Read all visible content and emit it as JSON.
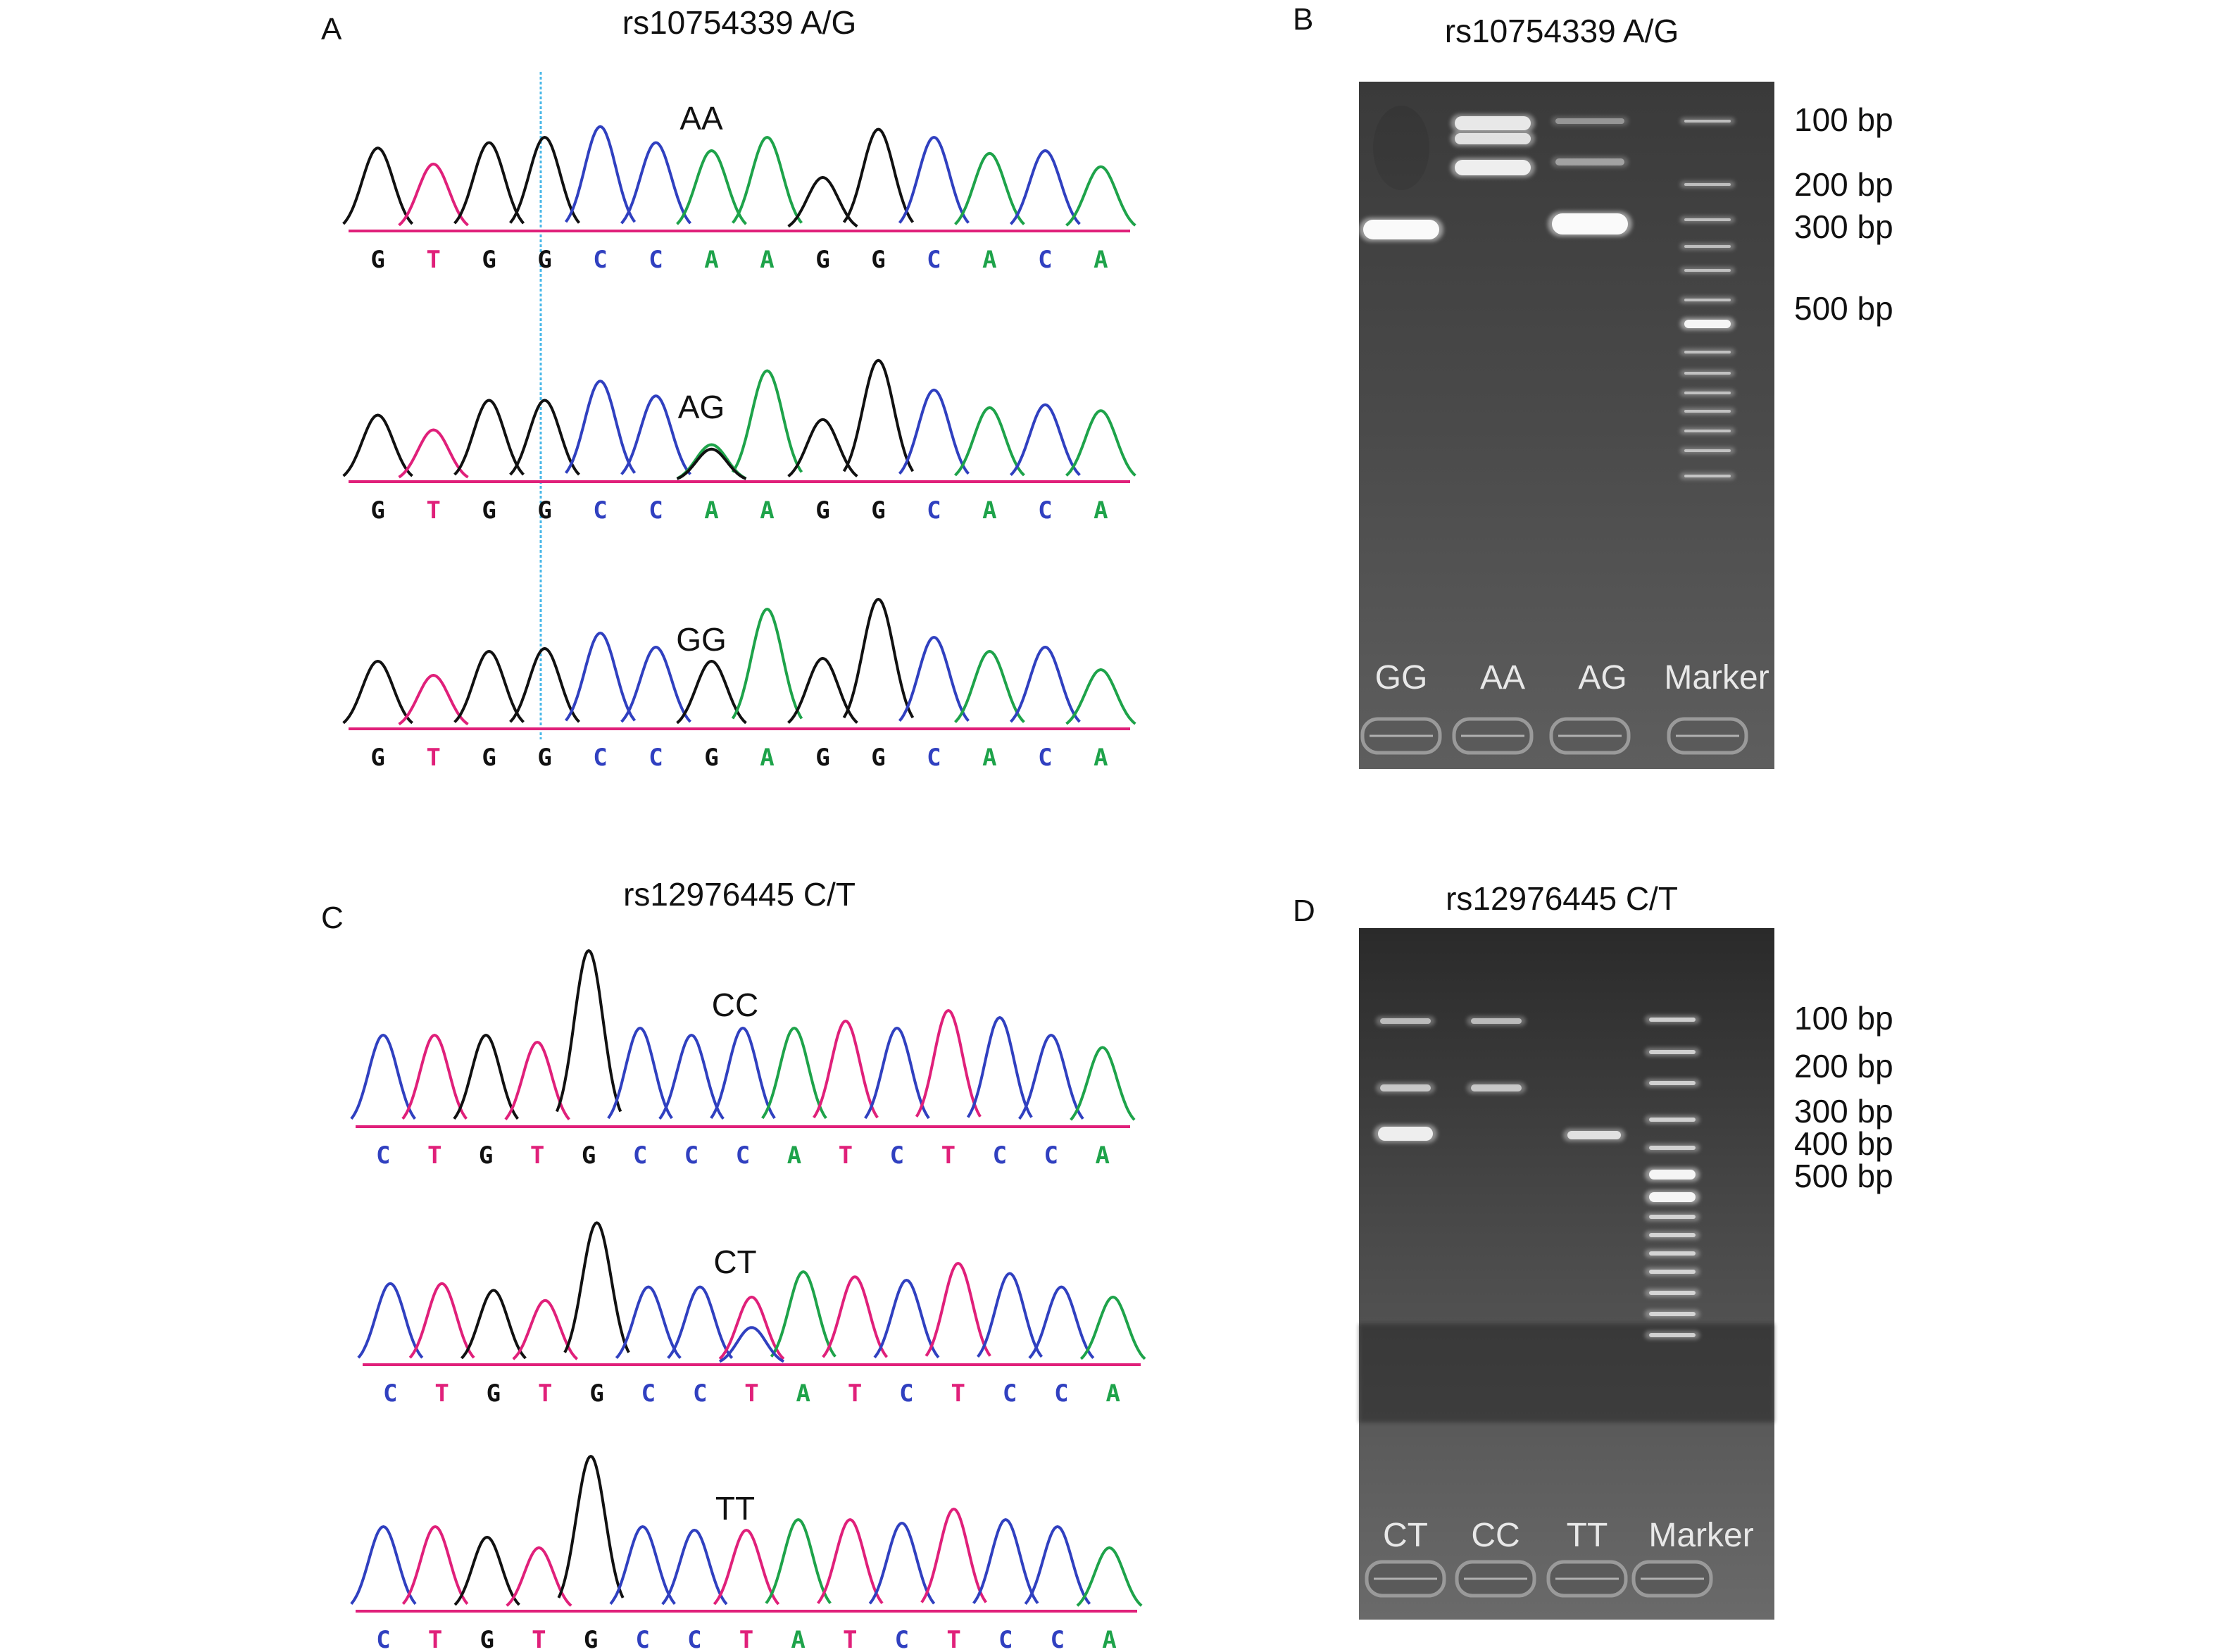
{
  "figure": {
    "panels": [
      {
        "id": "A",
        "label": "A",
        "title": "rs10754339 A/G",
        "traces": [
          {
            "genotype": "AA",
            "bases": [
              "G",
              "T",
              "G",
              "G",
              "C",
              "C",
              "A",
              "A",
              "G",
              "G",
              "C",
              "A",
              "C",
              "A"
            ],
            "peaks": [
              0.62,
              0.5,
              0.66,
              0.7,
              0.78,
              0.66,
              0.6,
              0.7,
              0.4,
              0.76,
              0.7,
              0.58,
              0.6,
              0.48
            ]
          },
          {
            "genotype": "AG",
            "bases": [
              "G",
              "T",
              "G",
              "G",
              "C",
              "C",
              "A",
              "A",
              "G",
              "G",
              "C",
              "A",
              "C",
              "A"
            ],
            "peaks": [
              0.45,
              0.35,
              0.55,
              0.55,
              0.68,
              0.58,
              0.25,
              0.75,
              0.42,
              0.82,
              0.62,
              0.5,
              0.52,
              0.48
            ]
          },
          {
            "genotype": "GG",
            "bases": [
              "G",
              "T",
              "G",
              "G",
              "C",
              "C",
              "G",
              "A",
              "G",
              "G",
              "C",
              "A",
              "C",
              "A"
            ],
            "peaks": [
              0.48,
              0.38,
              0.55,
              0.57,
              0.68,
              0.58,
              0.48,
              0.85,
              0.5,
              0.92,
              0.65,
              0.55,
              0.58,
              0.42
            ]
          }
        ]
      },
      {
        "id": "B",
        "label": "B",
        "title": "rs10754339 A/G",
        "markers": [
          "100 bp",
          "200 bp",
          "300 bp",
          "500 bp"
        ],
        "lanes": [
          "GG",
          "AA",
          "AG",
          "Marker"
        ]
      },
      {
        "id": "C",
        "label": "C",
        "title": "rs12976445 C/T",
        "traces": [
          {
            "genotype": "CC",
            "bases": [
              "C",
              "T",
              "G",
              "T",
              "G",
              "C",
              "C",
              "C",
              "A",
              "T",
              "C",
              "T",
              "C",
              "C",
              "A"
            ],
            "peaks": [
              0.52,
              0.52,
              0.52,
              0.48,
              1.0,
              0.56,
              0.52,
              0.56,
              0.56,
              0.6,
              0.56,
              0.66,
              0.62,
              0.52,
              0.45
            ]
          },
          {
            "genotype": "CT",
            "bases": [
              "C",
              "T",
              "G",
              "T",
              "G",
              "C",
              "C",
              "T",
              "A",
              "T",
              "C",
              "T",
              "C",
              "C",
              "A"
            ],
            "peaks": [
              0.48,
              0.48,
              0.44,
              0.38,
              0.84,
              0.46,
              0.46,
              0.4,
              0.55,
              0.52,
              0.5,
              0.6,
              0.54,
              0.46,
              0.4
            ]
          },
          {
            "genotype": "TT",
            "bases": [
              "C",
              "T",
              "G",
              "T",
              "G",
              "C",
              "C",
              "T",
              "A",
              "T",
              "C",
              "T",
              "C",
              "C",
              "A"
            ],
            "peaks": [
              0.48,
              0.48,
              0.42,
              0.36,
              0.88,
              0.48,
              0.46,
              0.46,
              0.52,
              0.52,
              0.5,
              0.58,
              0.52,
              0.48,
              0.36
            ]
          }
        ]
      },
      {
        "id": "D",
        "label": "D",
        "title": "rs12976445 C/T",
        "markers": [
          "100 bp",
          "200 bp",
          "300 bp",
          "400 bp",
          "500 bp"
        ],
        "lanes": [
          "CT",
          "CC",
          "TT",
          "Marker"
        ]
      }
    ],
    "base_colors": {
      "A": "#1ea34a",
      "C": "#3040c0",
      "G": "#111111",
      "T": "#e0207a"
    }
  }
}
